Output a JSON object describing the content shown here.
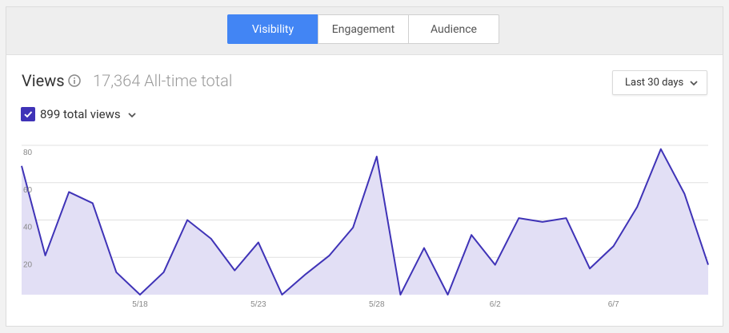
{
  "tabs": [
    {
      "label": "Visibility",
      "active": true
    },
    {
      "label": "Engagement",
      "active": false
    },
    {
      "label": "Audience",
      "active": false
    }
  ],
  "header": {
    "title": "Views",
    "total": "17,364 All-time total",
    "info_icon": "info-icon"
  },
  "range_selector": {
    "value": "Last 30 days"
  },
  "series_toggle": {
    "checked": true,
    "label": "899 total views"
  },
  "colors": {
    "accent": "#4285f4",
    "series": "#3f33b7",
    "fill": "#e2dff5"
  },
  "chart_data": {
    "type": "area",
    "ylim": [
      0,
      80
    ],
    "yticks": [
      "80",
      "60",
      "40",
      "20"
    ],
    "xticks": [
      "5/18",
      "5/23",
      "5/28",
      "6/2",
      "6/7"
    ],
    "series": [
      {
        "values": [
          69,
          21,
          55,
          49,
          12,
          0,
          12,
          40,
          30,
          13,
          28,
          0,
          11,
          21,
          36,
          74,
          0,
          25,
          0,
          32,
          16,
          41,
          39,
          41,
          14,
          26,
          47,
          78,
          54,
          16
        ]
      }
    ]
  }
}
